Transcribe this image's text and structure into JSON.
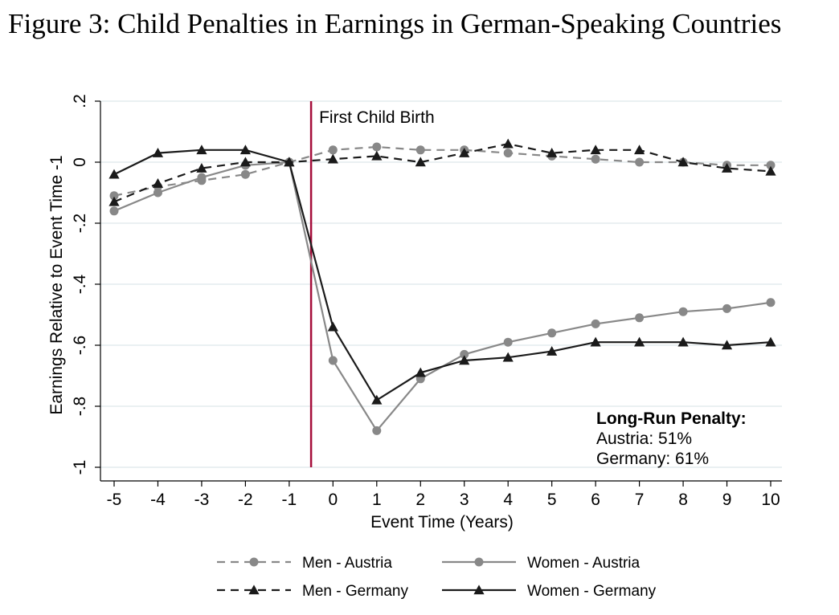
{
  "figure_title": "Figure 3: Child Penalties in Earnings in German-Speaking Countries",
  "chart_data": {
    "type": "line",
    "xlabel": "Event Time (Years)",
    "ylabel": "Earnings Relative to Event Time -1",
    "xlim": [
      -5,
      10
    ],
    "ylim": [
      -1,
      0.2
    ],
    "x_ticks": [
      -5,
      -4,
      -3,
      -2,
      -1,
      0,
      1,
      2,
      3,
      4,
      5,
      6,
      7,
      8,
      9,
      10
    ],
    "x_tick_labels": [
      "-5",
      "-4",
      "-3",
      "-2",
      "-1",
      "0",
      "1",
      "2",
      "3",
      "4",
      "5",
      "6",
      "7",
      "8",
      "9",
      "10"
    ],
    "y_ticks": [
      0.2,
      0,
      -0.2,
      -0.4,
      -0.6,
      -0.8,
      -1
    ],
    "y_tick_labels": [
      ".2",
      "0",
      "-.2",
      "-.4",
      "-.6",
      "-.8",
      "-1"
    ],
    "grid": "horizontal",
    "legend_position": "bottom",
    "event_line": {
      "x": -0.5,
      "label": "First Child Birth",
      "color": "#a50d3a"
    },
    "annotation": {
      "title": "Long-Run Penalty:",
      "lines": [
        "Austria: 51%",
        "Germany: 61%"
      ]
    },
    "x": [
      -5,
      -4,
      -3,
      -2,
      -1,
      0,
      1,
      2,
      3,
      4,
      5,
      6,
      7,
      8,
      9,
      10
    ],
    "series": [
      {
        "name": "Men - Austria",
        "color": "#888888",
        "dash": true,
        "marker": "circle",
        "values": [
          -0.11,
          -0.08,
          -0.06,
          -0.04,
          0.0,
          0.04,
          0.05,
          0.04,
          0.04,
          0.03,
          0.02,
          0.01,
          0.0,
          0.0,
          -0.01,
          -0.01
        ]
      },
      {
        "name": "Women - Austria",
        "color": "#888888",
        "dash": false,
        "marker": "circle",
        "values": [
          -0.16,
          -0.1,
          -0.05,
          -0.01,
          0.0,
          -0.65,
          -0.88,
          -0.71,
          -0.63,
          -0.59,
          -0.56,
          -0.53,
          -0.51,
          -0.49,
          -0.48,
          -0.46
        ]
      },
      {
        "name": "Men - Germany",
        "color": "#1a1a1a",
        "dash": true,
        "marker": "triangle",
        "values": [
          -0.13,
          -0.07,
          -0.02,
          0.0,
          0.0,
          0.01,
          0.02,
          0.0,
          0.03,
          0.06,
          0.03,
          0.04,
          0.04,
          -0.0,
          -0.02,
          -0.03
        ]
      },
      {
        "name": "Women - Germany",
        "color": "#1a1a1a",
        "dash": false,
        "marker": "triangle",
        "values": [
          -0.04,
          0.03,
          0.04,
          0.04,
          0.0,
          -0.54,
          -0.78,
          -0.69,
          -0.65,
          -0.64,
          -0.62,
          -0.59,
          -0.59,
          -0.59,
          -0.6,
          -0.59
        ]
      }
    ],
    "legend_order": [
      0,
      1,
      2,
      3
    ]
  }
}
